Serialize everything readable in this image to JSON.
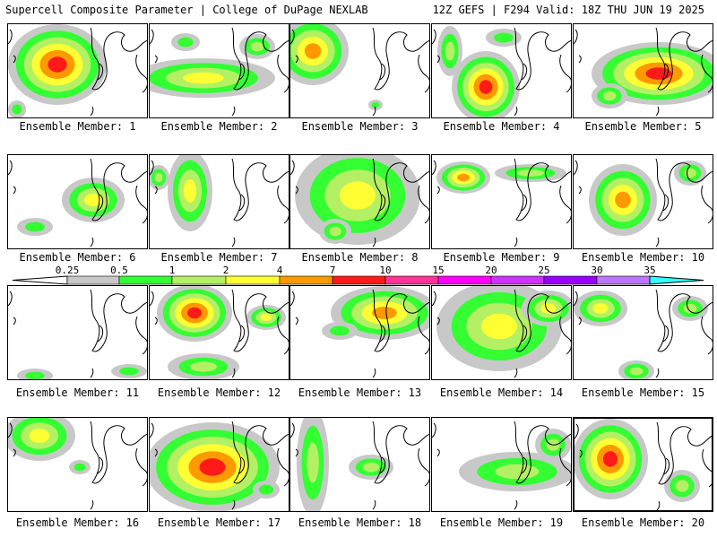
{
  "header": {
    "left_title": "Supercell Composite Parameter | College of DuPage NEXLAB",
    "right_title": "12Z GEFS | F294 Valid: 18Z THU JUN 19 2025"
  },
  "colorbar": {
    "labels": [
      "0.25",
      "0.5",
      "1",
      "2",
      "4",
      "7",
      "10",
      "15",
      "20",
      "25",
      "30",
      "35"
    ],
    "colors": [
      "#ffffff",
      "#c8c8c8",
      "#33ff33",
      "#b4f064",
      "#ffff33",
      "#ff9900",
      "#ff1a1a",
      "#ff3399",
      "#ff00ff",
      "#cc33ff",
      "#9900ff",
      "#bb77ff",
      "#33ffff"
    ]
  },
  "panels": [
    {
      "label": "Ensemble Member: 1"
    },
    {
      "label": "Ensemble Member: 2"
    },
    {
      "label": "Ensemble Member: 3"
    },
    {
      "label": "Ensemble Member: 4"
    },
    {
      "label": "Ensemble Member: 5"
    },
    {
      "label": "Ensemble Member: 6"
    },
    {
      "label": "Ensemble Member: 7"
    },
    {
      "label": "Ensemble Member: 8"
    },
    {
      "label": "Ensemble Member: 9"
    },
    {
      "label": "Ensemble Member: 10"
    },
    {
      "label": "Ensemble Member: 11"
    },
    {
      "label": "Ensemble Member: 12"
    },
    {
      "label": "Ensemble Member: 13"
    },
    {
      "label": "Ensemble Member: 14"
    },
    {
      "label": "Ensemble Member: 15"
    },
    {
      "label": "Ensemble Member: 16"
    },
    {
      "label": "Ensemble Member: 17"
    },
    {
      "label": "Ensemble Member: 18"
    },
    {
      "label": "Ensemble Member: 19"
    },
    {
      "label": "Ensemble Member: 20"
    }
  ]
}
